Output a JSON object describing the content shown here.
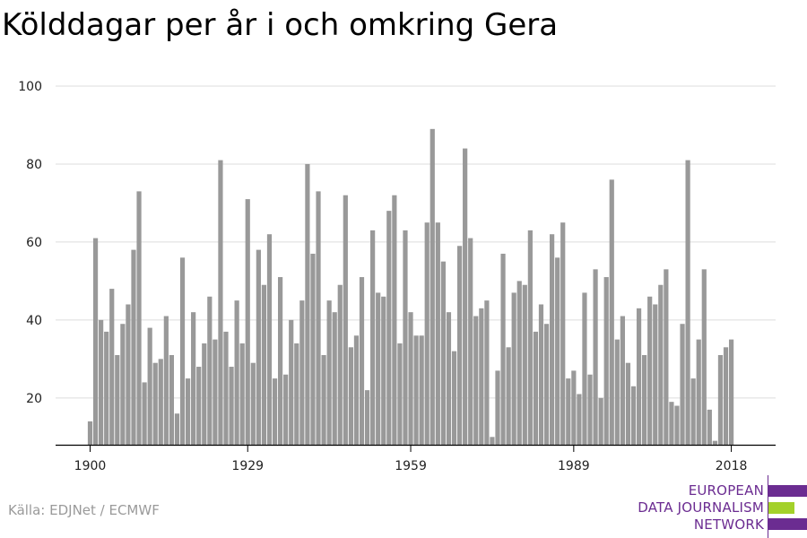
{
  "chart_data": {
    "type": "bar",
    "title": "Kölddagar per år i och omkring Gera",
    "xlabel": "",
    "ylabel": "",
    "x_start": 1900,
    "x_end": 2018,
    "xticks": [
      1900,
      1929,
      1959,
      1989,
      2018
    ],
    "yticks": [
      20,
      40,
      60,
      80,
      100
    ],
    "ylim": [
      8,
      100
    ],
    "grid": true,
    "bar_color": "#999999",
    "values": [
      14,
      61,
      40,
      37,
      48,
      31,
      39,
      44,
      58,
      73,
      24,
      38,
      29,
      30,
      41,
      31,
      16,
      56,
      25,
      42,
      28,
      34,
      46,
      35,
      81,
      37,
      28,
      45,
      34,
      71,
      29,
      58,
      49,
      62,
      25,
      51,
      26,
      40,
      34,
      45,
      80,
      57,
      73,
      31,
      45,
      42,
      49,
      72,
      33,
      36,
      51,
      22,
      63,
      47,
      46,
      68,
      72,
      34,
      63,
      42,
      36,
      36,
      65,
      89,
      65,
      55,
      42,
      32,
      59,
      84,
      61,
      41,
      43,
      45,
      10,
      27,
      57,
      33,
      47,
      50,
      49,
      63,
      37,
      44,
      39,
      62,
      56,
      65,
      25,
      27,
      21,
      47,
      26,
      53,
      20,
      51,
      76,
      35,
      41,
      29,
      23,
      43,
      31,
      46,
      44,
      49,
      53,
      19,
      18,
      39,
      81,
      25,
      35,
      53,
      17,
      9,
      31,
      33,
      35
    ]
  },
  "source": "Källa: EDJNet / ECMWF",
  "logo": {
    "line1": "EUROPEAN",
    "line2": "DATA JOURNALISM",
    "line3": "NETWORK",
    "purple": "#6b2c91",
    "green": "#a3d12a"
  }
}
